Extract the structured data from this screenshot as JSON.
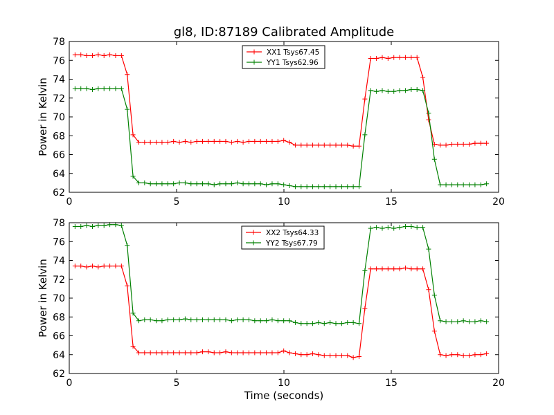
{
  "figure": {
    "title": "gl8, ID:87189 Calibrated Amplitude"
  },
  "chart_data": [
    {
      "type": "line",
      "title": "gl8, ID:87189 Calibrated Amplitude",
      "xlabel": "",
      "ylabel": "Power in Kelvin",
      "xlim": [
        0,
        20
      ],
      "ylim": [
        62,
        78
      ],
      "xticks": [
        "0",
        "5",
        "10",
        "15",
        "20"
      ],
      "yticks": [
        "62",
        "64",
        "66",
        "68",
        "70",
        "72",
        "74",
        "76",
        "78"
      ],
      "legend_position": "upper-center",
      "grid": false,
      "x": [
        0.27,
        0.54,
        0.81,
        1.08,
        1.35,
        1.62,
        1.89,
        2.16,
        2.43,
        2.7,
        2.97,
        3.24,
        3.51,
        3.78,
        4.05,
        4.32,
        4.59,
        4.86,
        5.13,
        5.4,
        5.67,
        5.94,
        6.21,
        6.48,
        6.75,
        7.02,
        7.29,
        7.56,
        7.83,
        8.1,
        8.37,
        8.64,
        8.91,
        9.18,
        9.45,
        9.72,
        9.99,
        10.26,
        10.53,
        10.8,
        11.07,
        11.34,
        11.61,
        11.88,
        12.15,
        12.42,
        12.69,
        12.96,
        13.23,
        13.5,
        13.77,
        14.04,
        14.31,
        14.58,
        14.85,
        15.12,
        15.39,
        15.66,
        15.93,
        16.2,
        16.47,
        16.74,
        17.01,
        17.28,
        17.55,
        17.82,
        18.09,
        18.36,
        18.63,
        18.9,
        19.17,
        19.44
      ],
      "series": [
        {
          "name": "XX1 Tsys67.45",
          "color": "#ff0000",
          "values": [
            76.6,
            76.6,
            76.5,
            76.5,
            76.6,
            76.5,
            76.6,
            76.5,
            76.5,
            74.5,
            68.1,
            67.3,
            67.3,
            67.3,
            67.3,
            67.3,
            67.3,
            67.4,
            67.3,
            67.4,
            67.3,
            67.4,
            67.4,
            67.4,
            67.4,
            67.4,
            67.4,
            67.3,
            67.4,
            67.3,
            67.4,
            67.4,
            67.4,
            67.4,
            67.4,
            67.4,
            67.5,
            67.3,
            67.0,
            67.0,
            67.0,
            67.0,
            67.0,
            67.0,
            67.0,
            67.0,
            67.0,
            67.0,
            66.9,
            66.9,
            71.9,
            76.2,
            76.2,
            76.3,
            76.2,
            76.3,
            76.3,
            76.3,
            76.3,
            76.3,
            74.2,
            69.7,
            67.1,
            67.0,
            67.0,
            67.1,
            67.1,
            67.1,
            67.1,
            67.2,
            67.2,
            67.2
          ]
        },
        {
          "name": "YY1 Tsys62.96",
          "color": "#008000",
          "values": [
            73.0,
            73.0,
            73.0,
            72.9,
            73.0,
            73.0,
            73.0,
            73.0,
            73.0,
            70.8,
            63.7,
            63.0,
            63.0,
            62.9,
            62.9,
            62.9,
            62.9,
            62.9,
            63.0,
            63.0,
            62.9,
            62.9,
            62.9,
            62.9,
            62.8,
            62.9,
            62.9,
            62.9,
            63.0,
            62.9,
            62.9,
            62.9,
            62.9,
            62.8,
            62.9,
            62.9,
            62.8,
            62.7,
            62.6,
            62.6,
            62.6,
            62.6,
            62.6,
            62.6,
            62.6,
            62.6,
            62.6,
            62.6,
            62.6,
            62.6,
            68.1,
            72.8,
            72.7,
            72.8,
            72.7,
            72.7,
            72.8,
            72.8,
            72.9,
            72.9,
            72.8,
            70.4,
            65.5,
            62.8,
            62.8,
            62.8,
            62.8,
            62.8,
            62.8,
            62.8,
            62.8,
            62.9
          ]
        }
      ]
    },
    {
      "type": "line",
      "title": "",
      "xlabel": "Time (seconds)",
      "ylabel": "Power in Kelvin",
      "xlim": [
        0,
        20
      ],
      "ylim": [
        62,
        78
      ],
      "xticks": [
        "0",
        "5",
        "10",
        "15",
        "20"
      ],
      "yticks": [
        "62",
        "64",
        "66",
        "68",
        "70",
        "72",
        "74",
        "76",
        "78"
      ],
      "legend_position": "upper-center",
      "grid": false,
      "x": [
        0.27,
        0.54,
        0.81,
        1.08,
        1.35,
        1.62,
        1.89,
        2.16,
        2.43,
        2.7,
        2.97,
        3.24,
        3.51,
        3.78,
        4.05,
        4.32,
        4.59,
        4.86,
        5.13,
        5.4,
        5.67,
        5.94,
        6.21,
        6.48,
        6.75,
        7.02,
        7.29,
        7.56,
        7.83,
        8.1,
        8.37,
        8.64,
        8.91,
        9.18,
        9.45,
        9.72,
        9.99,
        10.26,
        10.53,
        10.8,
        11.07,
        11.34,
        11.61,
        11.88,
        12.15,
        12.42,
        12.69,
        12.96,
        13.23,
        13.5,
        13.77,
        14.04,
        14.31,
        14.58,
        14.85,
        15.12,
        15.39,
        15.66,
        15.93,
        16.2,
        16.47,
        16.74,
        17.01,
        17.28,
        17.55,
        17.82,
        18.09,
        18.36,
        18.63,
        18.9,
        19.17,
        19.44
      ],
      "series": [
        {
          "name": "XX2 Tsys64.33",
          "color": "#ff0000",
          "values": [
            73.4,
            73.4,
            73.3,
            73.4,
            73.3,
            73.4,
            73.4,
            73.4,
            73.4,
            71.3,
            64.9,
            64.2,
            64.2,
            64.2,
            64.2,
            64.2,
            64.2,
            64.2,
            64.2,
            64.2,
            64.2,
            64.2,
            64.3,
            64.3,
            64.2,
            64.2,
            64.3,
            64.2,
            64.2,
            64.2,
            64.2,
            64.2,
            64.2,
            64.2,
            64.2,
            64.2,
            64.4,
            64.2,
            64.1,
            64.0,
            64.0,
            64.1,
            64.0,
            63.9,
            63.9,
            63.9,
            63.9,
            63.9,
            63.7,
            63.8,
            68.9,
            73.1,
            73.1,
            73.1,
            73.1,
            73.1,
            73.1,
            73.2,
            73.1,
            73.1,
            73.1,
            70.9,
            66.5,
            64.0,
            63.9,
            64.0,
            64.0,
            63.9,
            63.9,
            64.0,
            64.0,
            64.1
          ]
        },
        {
          "name": "YY2 Tsys67.79",
          "color": "#008000",
          "values": [
            77.6,
            77.6,
            77.7,
            77.6,
            77.7,
            77.7,
            77.8,
            77.8,
            77.7,
            75.6,
            68.4,
            67.6,
            67.7,
            67.7,
            67.6,
            67.6,
            67.7,
            67.7,
            67.7,
            67.8,
            67.7,
            67.7,
            67.7,
            67.7,
            67.7,
            67.7,
            67.7,
            67.6,
            67.7,
            67.7,
            67.7,
            67.6,
            67.6,
            67.6,
            67.7,
            67.6,
            67.6,
            67.6,
            67.4,
            67.3,
            67.3,
            67.3,
            67.4,
            67.3,
            67.4,
            67.3,
            67.3,
            67.4,
            67.4,
            67.3,
            72.9,
            77.4,
            77.5,
            77.4,
            77.5,
            77.4,
            77.5,
            77.6,
            77.6,
            77.5,
            77.5,
            75.2,
            70.3,
            67.6,
            67.5,
            67.5,
            67.5,
            67.6,
            67.5,
            67.5,
            67.6,
            67.5
          ]
        }
      ]
    }
  ]
}
